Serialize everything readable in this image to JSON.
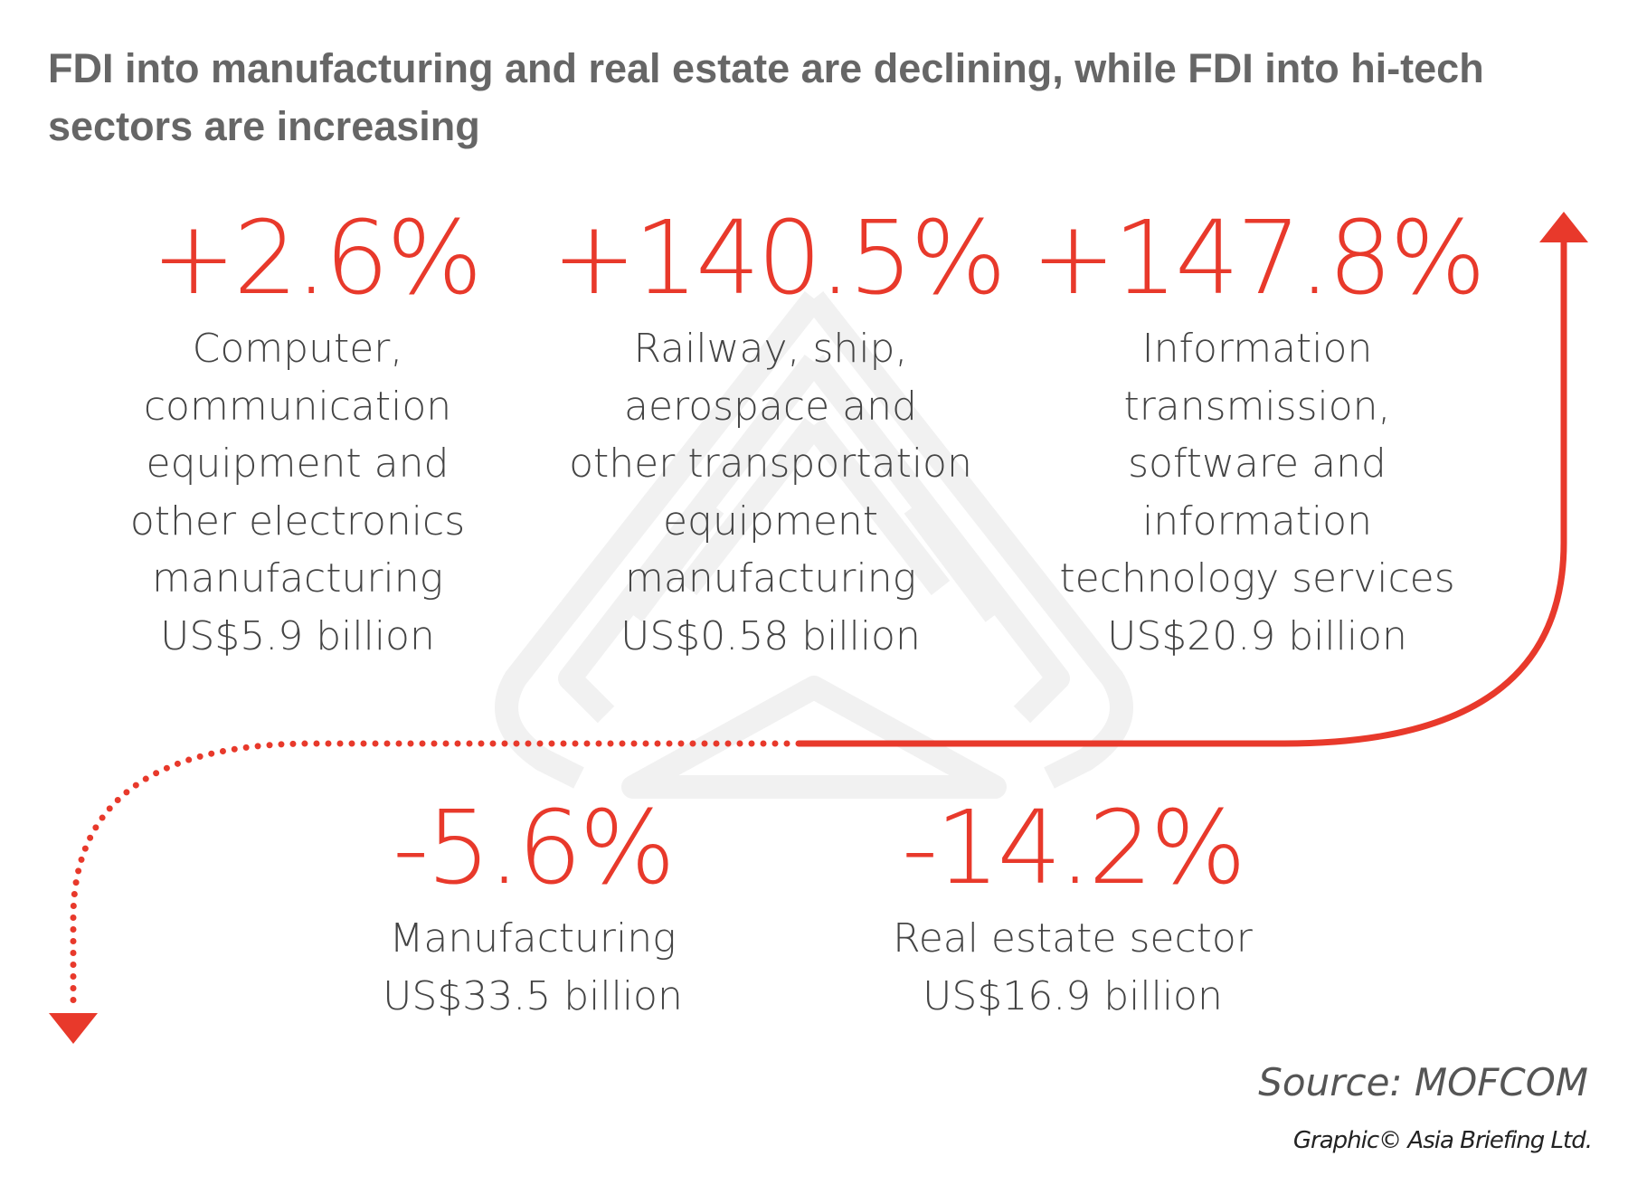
{
  "title": "FDI into manufacturing and real estate are declining, while FDI into hi-tech sectors are increasing",
  "colors": {
    "accent": "#e8392b",
    "text": "#444444",
    "title": "#666666",
    "watermark": "#f1f1f1"
  },
  "increasing": [
    {
      "change": "+2.6%",
      "lines": [
        "Computer,",
        "communication",
        "equipment and",
        "other electronics",
        "manufacturing",
        "US$5.9 billion"
      ]
    },
    {
      "change": "+140.5%",
      "lines": [
        "Railway, ship,",
        "aerospace and",
        "other transportation",
        "equipment",
        "manufacturing",
        "US$0.58 billion"
      ]
    },
    {
      "change": "+147.8%",
      "lines": [
        "Information",
        "transmission,",
        "software and",
        "information",
        "technology services",
        "US$20.9 billion"
      ]
    }
  ],
  "decreasing": [
    {
      "change": "-5.6%",
      "lines": [
        "Manufacturing",
        "US$33.5 billion"
      ]
    },
    {
      "change": "-14.2%",
      "lines": [
        "Real estate sector",
        "US$16.9 billion"
      ]
    }
  ],
  "icons": {
    "up": "arrow-up-icon",
    "down": "arrow-down-icon",
    "watermark": "company-logo-watermark"
  },
  "source": "Source: MOFCOM",
  "credit": "Graphic© Asia Briefing Ltd."
}
